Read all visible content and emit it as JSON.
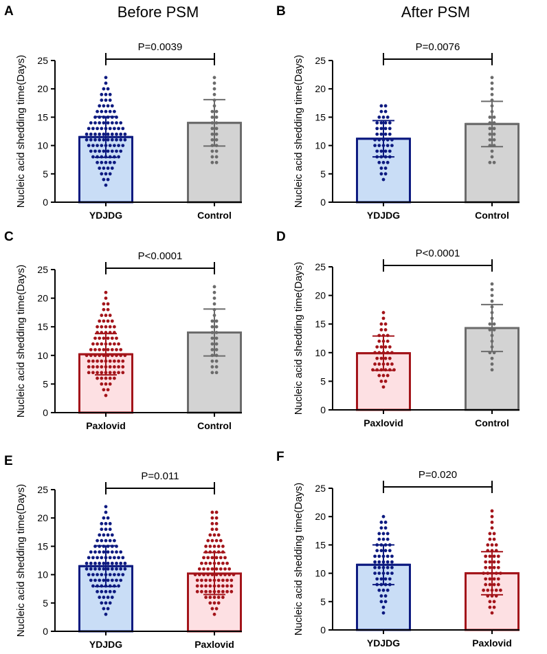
{
  "column_titles": [
    "Before PSM",
    "After PSM"
  ],
  "colors": {
    "ydjdg_stroke": "#0d1a80",
    "ydjdg_fill": "#c9ddf6",
    "ydjdg_dot": "#0d1a80",
    "paxlovid_stroke": "#a3141a",
    "paxlovid_fill": "#fde0e3",
    "paxlovid_dot": "#a3141a",
    "control_stroke": "#6b6b6b",
    "control_fill": "#d3d3d3",
    "control_dot": "#6b6b6b"
  },
  "chart_data": [
    {
      "panel": "A",
      "type": "bar",
      "ylabel": "Nucleic acid shedding time(Days)",
      "ylim": [
        0,
        25
      ],
      "yticks": [
        0,
        5,
        10,
        15,
        20,
        25
      ],
      "categories": [
        "YDJDG",
        "Control"
      ],
      "group_keys": [
        "ydjdg",
        "control"
      ],
      "means": [
        11.5,
        14.0
      ],
      "sd": [
        3.6,
        4.1
      ],
      "pvalue": "P=0.0039",
      "points": [
        [
          3,
          4,
          4,
          5,
          5,
          5,
          6,
          6,
          6,
          6,
          7,
          7,
          7,
          7,
          7,
          8,
          8,
          8,
          8,
          8,
          8,
          8,
          9,
          9,
          9,
          9,
          9,
          9,
          9,
          9,
          10,
          10,
          10,
          10,
          10,
          10,
          10,
          10,
          10,
          11,
          11,
          11,
          11,
          11,
          11,
          11,
          11,
          11,
          11,
          12,
          12,
          12,
          12,
          12,
          12,
          12,
          12,
          12,
          12,
          13,
          13,
          13,
          13,
          13,
          13,
          13,
          13,
          13,
          14,
          14,
          14,
          14,
          14,
          14,
          14,
          14,
          15,
          15,
          15,
          15,
          15,
          15,
          16,
          16,
          16,
          16,
          16,
          17,
          17,
          17,
          17,
          18,
          18,
          18,
          19,
          19,
          19,
          20,
          20,
          21,
          22
        ],
        [
          7,
          7,
          8,
          8,
          9,
          9,
          10,
          10,
          11,
          11,
          12,
          12,
          13,
          13,
          14,
          14,
          15,
          15,
          16,
          16,
          17,
          18,
          19,
          20,
          21,
          22
        ]
      ]
    },
    {
      "panel": "B",
      "type": "bar",
      "ylabel": "Nucleic acid shedding time(Days)",
      "ylim": [
        0,
        25
      ],
      "yticks": [
        0,
        5,
        10,
        15,
        20,
        25
      ],
      "categories": [
        "YDJDG",
        "Control"
      ],
      "group_keys": [
        "ydjdg",
        "control"
      ],
      "means": [
        11.2,
        13.8
      ],
      "sd": [
        3.2,
        4.0
      ],
      "pvalue": "P=0.0076",
      "points": [
        [
          4,
          5,
          5,
          6,
          6,
          7,
          7,
          7,
          8,
          8,
          8,
          8,
          9,
          9,
          9,
          9,
          10,
          10,
          10,
          10,
          10,
          11,
          11,
          11,
          11,
          11,
          12,
          12,
          12,
          12,
          13,
          13,
          13,
          13,
          14,
          14,
          14,
          14,
          15,
          15,
          15,
          16,
          16,
          17,
          17
        ],
        [
          7,
          7,
          8,
          9,
          10,
          10,
          11,
          11,
          12,
          12,
          13,
          13,
          14,
          14,
          15,
          15,
          16,
          17,
          18,
          19,
          20,
          21,
          22
        ]
      ]
    },
    {
      "panel": "C",
      "type": "bar",
      "ylabel": "Nucleic acid shedding time(Days)",
      "ylim": [
        0,
        25
      ],
      "yticks": [
        0,
        5,
        10,
        15,
        20,
        25
      ],
      "categories": [
        "Paxlovid",
        "Control"
      ],
      "group_keys": [
        "paxlovid",
        "control"
      ],
      "means": [
        10.2,
        14.0
      ],
      "sd": [
        3.6,
        4.1
      ],
      "pvalue": "P<0.0001",
      "points": [
        [
          3,
          4,
          4,
          5,
          5,
          5,
          6,
          6,
          6,
          6,
          6,
          7,
          7,
          7,
          7,
          7,
          7,
          7,
          7,
          7,
          8,
          8,
          8,
          8,
          8,
          8,
          8,
          8,
          8,
          9,
          9,
          9,
          9,
          9,
          9,
          9,
          9,
          9,
          10,
          10,
          10,
          10,
          10,
          10,
          10,
          10,
          10,
          10,
          11,
          11,
          11,
          11,
          11,
          11,
          11,
          11,
          12,
          12,
          12,
          12,
          12,
          12,
          12,
          13,
          13,
          13,
          13,
          13,
          13,
          14,
          14,
          14,
          14,
          14,
          15,
          15,
          15,
          15,
          15,
          16,
          16,
          16,
          16,
          17,
          17,
          17,
          18,
          18,
          19,
          19,
          20,
          21
        ],
        [
          7,
          7,
          8,
          8,
          9,
          9,
          10,
          10,
          11,
          11,
          12,
          12,
          13,
          13,
          14,
          14,
          15,
          15,
          16,
          16,
          17,
          18,
          19,
          20,
          21,
          22
        ]
      ]
    },
    {
      "panel": "D",
      "type": "bar",
      "ylabel": "Nucleic acid shedding time(Days)",
      "ylim": [
        0,
        25
      ],
      "yticks": [
        0,
        5,
        10,
        15,
        20,
        25
      ],
      "categories": [
        "Paxlovid",
        "Control"
      ],
      "group_keys": [
        "paxlovid",
        "control"
      ],
      "means": [
        9.9,
        14.3
      ],
      "sd": [
        3.0,
        4.1
      ],
      "pvalue": "P<0.0001",
      "points": [
        [
          4,
          5,
          5,
          6,
          6,
          6,
          7,
          7,
          7,
          7,
          7,
          7,
          8,
          8,
          8,
          8,
          8,
          9,
          9,
          9,
          9,
          10,
          10,
          10,
          10,
          10,
          11,
          11,
          11,
          11,
          12,
          12,
          12,
          13,
          13,
          13,
          14,
          14,
          15,
          15,
          16,
          17
        ],
        [
          7,
          8,
          9,
          10,
          10,
          11,
          12,
          13,
          14,
          14,
          15,
          15,
          16,
          17,
          18,
          19,
          20,
          21,
          22
        ]
      ]
    },
    {
      "panel": "E",
      "type": "bar",
      "ylabel": "Nucleic acid shedding time(Days)",
      "ylim": [
        0,
        25
      ],
      "yticks": [
        0,
        5,
        10,
        15,
        20,
        25
      ],
      "categories": [
        "YDJDG",
        "Paxlovid"
      ],
      "group_keys": [
        "ydjdg",
        "paxlovid"
      ],
      "means": [
        11.5,
        10.2
      ],
      "sd": [
        3.6,
        3.7
      ],
      "pvalue": "P=0.011",
      "points": [
        [
          3,
          4,
          4,
          5,
          5,
          5,
          6,
          6,
          6,
          6,
          7,
          7,
          7,
          7,
          7,
          8,
          8,
          8,
          8,
          8,
          8,
          8,
          9,
          9,
          9,
          9,
          9,
          9,
          9,
          9,
          10,
          10,
          10,
          10,
          10,
          10,
          10,
          10,
          10,
          11,
          11,
          11,
          11,
          11,
          11,
          11,
          11,
          11,
          11,
          12,
          12,
          12,
          12,
          12,
          12,
          12,
          12,
          12,
          12,
          13,
          13,
          13,
          13,
          13,
          13,
          13,
          13,
          13,
          14,
          14,
          14,
          14,
          14,
          14,
          14,
          14,
          15,
          15,
          15,
          15,
          15,
          15,
          16,
          16,
          16,
          16,
          16,
          17,
          17,
          17,
          17,
          18,
          18,
          18,
          19,
          19,
          19,
          20,
          20,
          21,
          22
        ],
        [
          3,
          4,
          4,
          5,
          5,
          5,
          6,
          6,
          6,
          6,
          6,
          7,
          7,
          7,
          7,
          7,
          7,
          7,
          7,
          7,
          8,
          8,
          8,
          8,
          8,
          8,
          8,
          8,
          8,
          9,
          9,
          9,
          9,
          9,
          9,
          9,
          9,
          9,
          10,
          10,
          10,
          10,
          10,
          10,
          10,
          10,
          10,
          10,
          11,
          11,
          11,
          11,
          11,
          11,
          11,
          11,
          12,
          12,
          12,
          12,
          12,
          12,
          12,
          13,
          13,
          13,
          13,
          13,
          13,
          14,
          14,
          14,
          14,
          14,
          15,
          15,
          15,
          15,
          15,
          16,
          16,
          16,
          16,
          17,
          17,
          17,
          18,
          18,
          19,
          19,
          20,
          20,
          21,
          21
        ]
      ]
    },
    {
      "panel": "F",
      "type": "bar",
      "ylabel": "Nucleic acid shedding time(Days)",
      "ylim": [
        0,
        25
      ],
      "yticks": [
        0,
        5,
        10,
        15,
        20,
        25
      ],
      "categories": [
        "YDJDG",
        "Paxlovid"
      ],
      "group_keys": [
        "ydjdg",
        "paxlovid"
      ],
      "means": [
        11.5,
        10.0
      ],
      "sd": [
        3.5,
        3.8
      ],
      "pvalue": "P=0.020",
      "points": [
        [
          3,
          4,
          5,
          5,
          6,
          6,
          7,
          7,
          7,
          8,
          8,
          8,
          8,
          9,
          9,
          9,
          9,
          10,
          10,
          10,
          10,
          10,
          11,
          11,
          11,
          11,
          11,
          12,
          12,
          12,
          12,
          12,
          13,
          13,
          13,
          13,
          13,
          14,
          14,
          14,
          14,
          15,
          15,
          15,
          15,
          16,
          16,
          16,
          17,
          17,
          17,
          18,
          18,
          19,
          19,
          20
        ],
        [
          3,
          4,
          4,
          5,
          5,
          6,
          6,
          6,
          7,
          7,
          7,
          7,
          7,
          8,
          8,
          8,
          8,
          9,
          9,
          9,
          9,
          10,
          10,
          10,
          10,
          10,
          11,
          11,
          11,
          11,
          12,
          12,
          12,
          12,
          13,
          13,
          13,
          13,
          14,
          14,
          14,
          15,
          15,
          15,
          16,
          16,
          17,
          17,
          18,
          19,
          20,
          21
        ]
      ]
    }
  ]
}
